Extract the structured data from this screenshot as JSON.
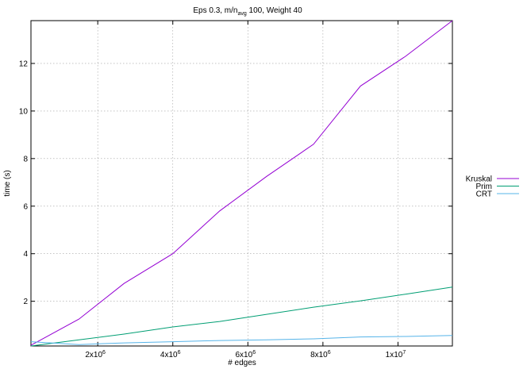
{
  "chart_data": {
    "type": "line",
    "title": "Eps 0.3, m/n",
    "title_sub": "avg",
    "title_rest": " 100, Weight 40",
    "xlabel": "# edges",
    "ylabel": "time (s)",
    "xlim": [
      220000,
      11450000
    ],
    "ylim": [
      0.12,
      13.8
    ],
    "grid": true,
    "legend_placement": "outside-right",
    "x_ticks": [
      {
        "value": 2000000,
        "mantissa": "2x10",
        "exp": "6"
      },
      {
        "value": 4000000,
        "mantissa": "4x10",
        "exp": "6"
      },
      {
        "value": 6000000,
        "mantissa": "6x10",
        "exp": "6"
      },
      {
        "value": 8000000,
        "mantissa": "8x10",
        "exp": "6"
      },
      {
        "value": 10000000,
        "mantissa": "1x10",
        "exp": "7"
      }
    ],
    "y_ticks": [
      {
        "value": 2,
        "label": "2"
      },
      {
        "value": 4,
        "label": "4"
      },
      {
        "value": 6,
        "label": "6"
      },
      {
        "value": 8,
        "label": "8"
      },
      {
        "value": 10,
        "label": "10"
      },
      {
        "value": 12,
        "label": "12"
      }
    ],
    "series": [
      {
        "name": "Kruskal",
        "color": "#9400d3",
        "x": [
          220000,
          1500000,
          2700000,
          4000000,
          5250000,
          6500000,
          7750000,
          9000000,
          10200000,
          11450000
        ],
        "y": [
          0.15,
          1.25,
          2.75,
          4.0,
          5.8,
          7.25,
          8.6,
          11.05,
          12.3,
          13.8
        ]
      },
      {
        "name": "Prim",
        "color": "#009e73",
        "x": [
          220000,
          1500000,
          2700000,
          4000000,
          5250000,
          6500000,
          7750000,
          9000000,
          10200000,
          11450000
        ],
        "y": [
          0.12,
          0.38,
          0.62,
          0.92,
          1.15,
          1.45,
          1.75,
          2.02,
          2.3,
          2.6
        ]
      },
      {
        "name": "CRT",
        "color": "#56b4e9",
        "x": [
          220000,
          1500000,
          2700000,
          4000000,
          5250000,
          6500000,
          7750000,
          9000000,
          10200000,
          11450000
        ],
        "y": [
          0.3,
          0.18,
          0.25,
          0.3,
          0.35,
          0.38,
          0.42,
          0.5,
          0.52,
          0.56
        ]
      }
    ]
  }
}
